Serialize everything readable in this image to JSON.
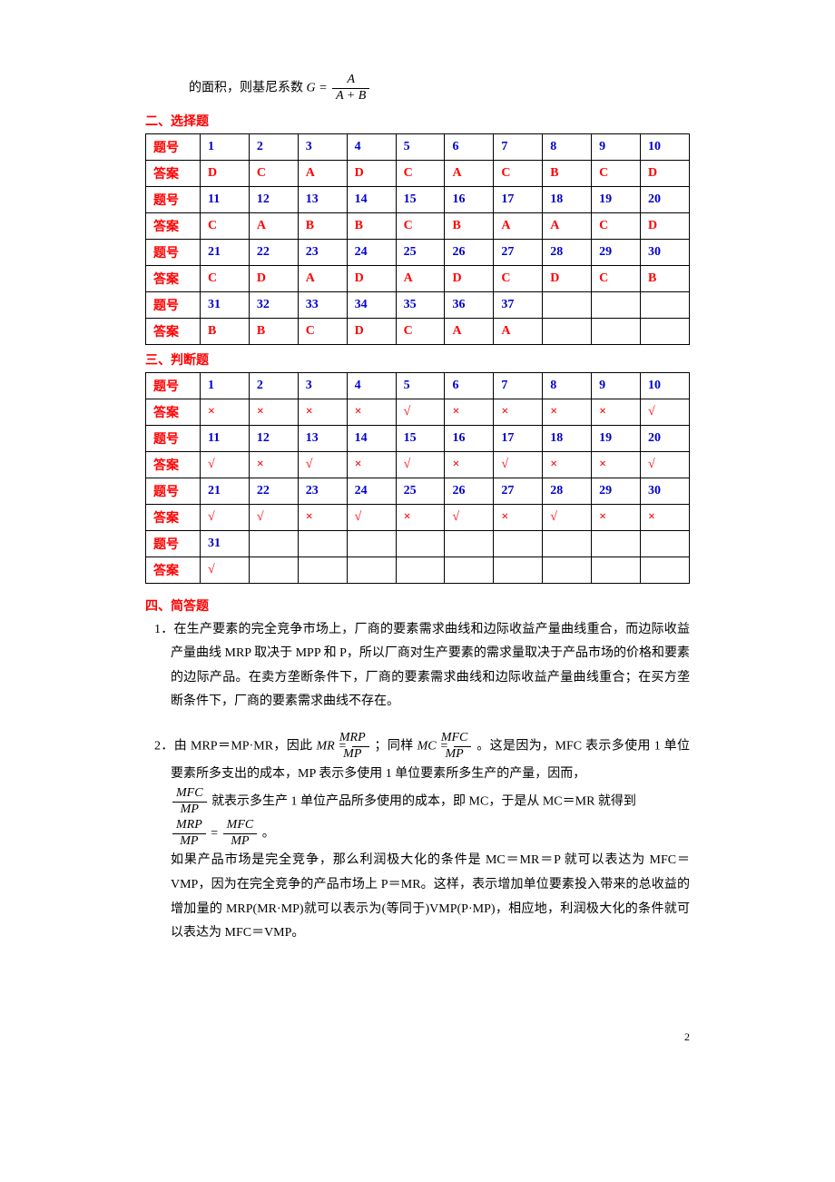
{
  "topFormula": {
    "prefix": "的面积，则基尼系数",
    "left": "G =",
    "num": "A",
    "den": "A + B"
  },
  "section2": {
    "title": "二、选择题",
    "labelQ": "题号",
    "labelA": "答案",
    "rows": [
      {
        "start": 1,
        "answers": [
          "D",
          "C",
          "A",
          "D",
          "C",
          "A",
          "C",
          "B",
          "C",
          "D"
        ]
      },
      {
        "start": 11,
        "answers": [
          "C",
          "A",
          "B",
          "B",
          "C",
          "B",
          "A",
          "A",
          "C",
          "D"
        ]
      },
      {
        "start": 21,
        "answers": [
          "C",
          "D",
          "A",
          "D",
          "A",
          "D",
          "C",
          "D",
          "C",
          "B"
        ]
      },
      {
        "start": 31,
        "answers": [
          "B",
          "B",
          "C",
          "D",
          "C",
          "A",
          "A",
          "",
          "",
          ""
        ]
      }
    ]
  },
  "section3": {
    "title": "三、判断题",
    "labelQ": "题号",
    "labelA": "答案",
    "rows": [
      {
        "start": 1,
        "answers": [
          "×",
          "×",
          "×",
          "×",
          "√",
          "×",
          "×",
          "×",
          "×",
          "√"
        ]
      },
      {
        "start": 11,
        "answers": [
          "√",
          "×",
          "√",
          "×",
          "√",
          "×",
          "√",
          "×",
          "×",
          "√"
        ]
      },
      {
        "start": 21,
        "answers": [
          "√",
          "√",
          "×",
          "√",
          "×",
          "√",
          "×",
          "√",
          "×",
          "×"
        ]
      },
      {
        "start": 31,
        "answers": [
          "√",
          "",
          "",
          "",
          "",
          "",
          "",
          "",
          "",
          ""
        ]
      }
    ]
  },
  "section4": {
    "title": "四、简答题",
    "q1": "1．在生产要素的完全竞争市场上，厂商的要素需求曲线和边际收益产量曲线重合，而边际收益产量曲线 MRP 取决于 MPP 和 P，所以厂商对生产要素的需求量取决于产品市场的价格和要素的边际产品。在卖方垄断条件下，厂商的要素需求曲线和边际收益产量曲线重合；在买方垄断条件下，厂商的要素需求曲线不存在。",
    "q2": {
      "lead": "2．由 MRP＝MP·MR，因此",
      "mr_eq": {
        "left": "MR =",
        "num": "MRP",
        "den": "MP"
      },
      "mid1": "；同样",
      "mc_eq": {
        "left": "MC =",
        "num": "MFC",
        "den": "MP"
      },
      "tail1": "。这是因为，MFC 表示多使用 1 单位要素所多支出的成本，MP 表示多使用 1 单位要素所多生产的产量，因而，",
      "frac_mfc": {
        "num": "MFC",
        "den": "MP"
      },
      "line2b": "就表示多生产 1 单位产品所多使用的成本，即 MC，于是从 MC＝MR 就得到",
      "eqline": {
        "lnum": "MRP",
        "lden": "MP",
        "rnum": "MFC",
        "rden": "MP"
      },
      "period": "。",
      "para2": "如果产品市场是完全竞争，那么利润极大化的条件是 MC＝MR＝P 就可以表达为 MFC＝VMP，因为在完全竞争的产品市场上 P＝MR。这样，表示增加单位要素投入带来的总收益的增加量的 MRP(MR·MP)就可以表示为(等同于)VMP(P·MP)，相应地，利润极大化的条件就可以表达为 MFC＝VMP。"
    }
  },
  "pageNumber": "2",
  "style": {
    "red": "#ff0000",
    "blue": "#0000d0",
    "border": "#000000",
    "bg": "#ffffff",
    "cellHeight": 26,
    "fontSize": 14
  }
}
